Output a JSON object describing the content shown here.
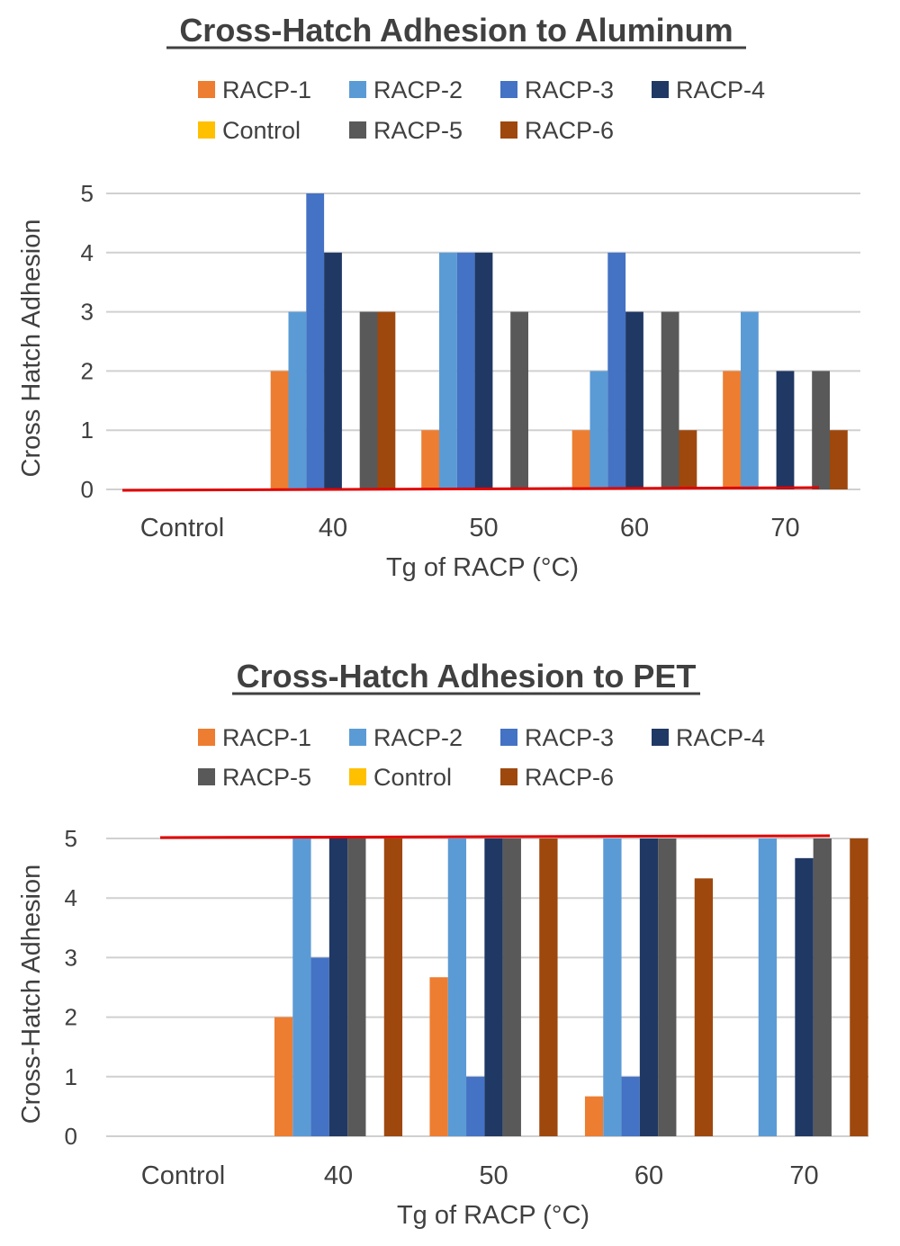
{
  "chart_data": [
    {
      "type": "bar",
      "title": "Cross-Hatch Adhesion to Aluminum",
      "xlabel": "Tg of RACP (°C)",
      "ylabel": "Cross Hatch Adhesion",
      "ylim": [
        0,
        5
      ],
      "yticks": [
        "0",
        "1",
        "2",
        "3",
        "4",
        "5"
      ],
      "grid": true,
      "legend_position": "top",
      "categories": [
        "Control",
        "40",
        "50",
        "60",
        "70"
      ],
      "series": [
        {
          "name": "RACP-1",
          "color": "#ED7D31",
          "values": [
            0,
            2,
            1,
            1,
            2
          ]
        },
        {
          "name": "RACP-2",
          "color": "#5B9BD5",
          "values": [
            0,
            3,
            4,
            2,
            3
          ]
        },
        {
          "name": "RACP-3",
          "color": "#4472C4",
          "values": [
            0,
            5,
            4,
            4,
            0
          ]
        },
        {
          "name": "RACP-4",
          "color": "#203864",
          "values": [
            0,
            4,
            4,
            3,
            2
          ]
        },
        {
          "name": "Control",
          "color": "#FFC000",
          "values": [
            0,
            0,
            0,
            0,
            0
          ]
        },
        {
          "name": "RACP-5",
          "color": "#595959",
          "values": [
            0,
            3,
            3,
            3,
            2
          ]
        },
        {
          "name": "RACP-6",
          "color": "#9E480E",
          "values": [
            0,
            3,
            0,
            1,
            1
          ]
        }
      ],
      "reference_line": {
        "value": 0,
        "color": "#E00000"
      }
    },
    {
      "type": "bar",
      "title": "Cross-Hatch Adhesion to PET",
      "xlabel": "Tg of RACP (°C)",
      "ylabel": "Cross-Hatch Adhesion",
      "ylim": [
        0,
        5
      ],
      "yticks": [
        "0",
        "1",
        "2",
        "3",
        "4",
        "5"
      ],
      "grid": true,
      "legend_position": "top",
      "categories": [
        "Control",
        "40",
        "50",
        "60",
        "70"
      ],
      "series": [
        {
          "name": "RACP-1",
          "color": "#ED7D31",
          "values": [
            0,
            2,
            2.67,
            0.67,
            0
          ]
        },
        {
          "name": "RACP-2",
          "color": "#5B9BD5",
          "values": [
            0,
            5,
            5,
            5,
            5
          ]
        },
        {
          "name": "RACP-3",
          "color": "#4472C4",
          "values": [
            0,
            3,
            1,
            1,
            0
          ]
        },
        {
          "name": "RACP-4",
          "color": "#203864",
          "values": [
            0,
            5,
            5,
            5,
            4.67
          ]
        },
        {
          "name": "RACP-5",
          "color": "#595959",
          "values": [
            0,
            5,
            5,
            5,
            5
          ]
        },
        {
          "name": "Control",
          "color": "#FFC000",
          "values": [
            0,
            0,
            0,
            0,
            0
          ]
        },
        {
          "name": "RACP-6",
          "color": "#9E480E",
          "values": [
            0,
            5,
            5,
            4.33,
            5
          ]
        }
      ],
      "reference_line": {
        "value": 5,
        "color": "#E00000"
      }
    }
  ]
}
